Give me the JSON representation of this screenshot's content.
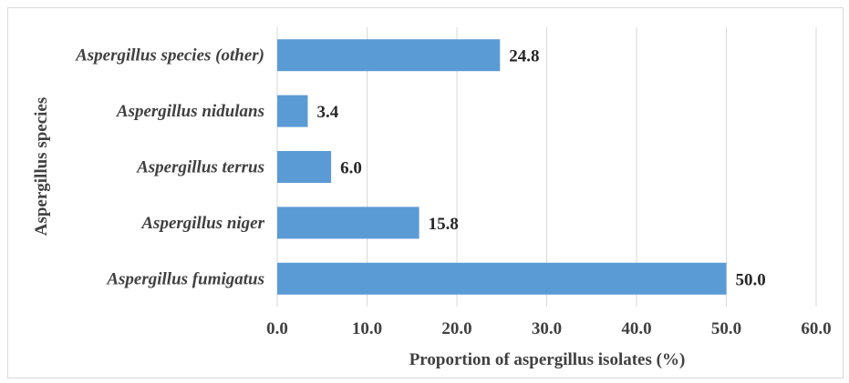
{
  "chart_data": {
    "type": "bar",
    "orientation": "horizontal",
    "title": "",
    "xlabel": "Proportion of aspergillus isolates (%)",
    "ylabel": "Aspergillus species",
    "categories": [
      "Aspergillus species (other)",
      "Aspergillus nidulans",
      "Aspergillus terrus",
      "Aspergillus niger",
      "Aspergillus fumigatus"
    ],
    "values": [
      24.8,
      3.4,
      6.0,
      15.8,
      50.0
    ],
    "data_labels": [
      "24.8",
      "3.4",
      "6.0",
      "15.8",
      "50.0"
    ],
    "xlim": [
      0,
      60
    ],
    "x_ticks": [
      "0.0",
      "10.0",
      "20.0",
      "30.0",
      "40.0",
      "50.0",
      "60.0"
    ],
    "grid": "vertical",
    "legend": "none",
    "bar_color": "#5b9bd5"
  }
}
